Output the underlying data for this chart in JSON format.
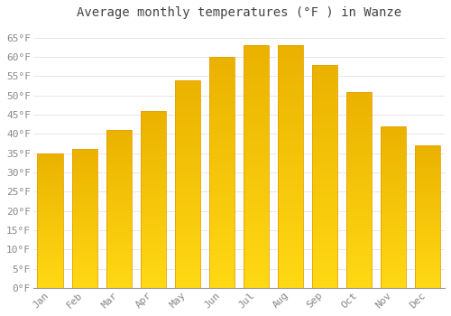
{
  "title": "Average monthly temperatures (°F ) in Wanze",
  "months": [
    "Jan",
    "Feb",
    "Mar",
    "Apr",
    "May",
    "Jun",
    "Jul",
    "Aug",
    "Sep",
    "Oct",
    "Nov",
    "Dec"
  ],
  "values": [
    35,
    36,
    41,
    46,
    54,
    60,
    63,
    63,
    58,
    51,
    42,
    37
  ],
  "bar_color_face": "#FFBB22",
  "bar_color_edge": "#E8A000",
  "bar_gradient_bottom": "#FFD060",
  "background_color": "#FFFFFF",
  "yticks": [
    0,
    5,
    10,
    15,
    20,
    25,
    30,
    35,
    40,
    45,
    50,
    55,
    60,
    65
  ],
  "ylim": [
    0,
    68
  ],
  "grid_color": "#dddddd",
  "title_fontsize": 10,
  "tick_fontsize": 8,
  "tick_color": "#888888",
  "title_color": "#444444",
  "bar_width": 0.75
}
